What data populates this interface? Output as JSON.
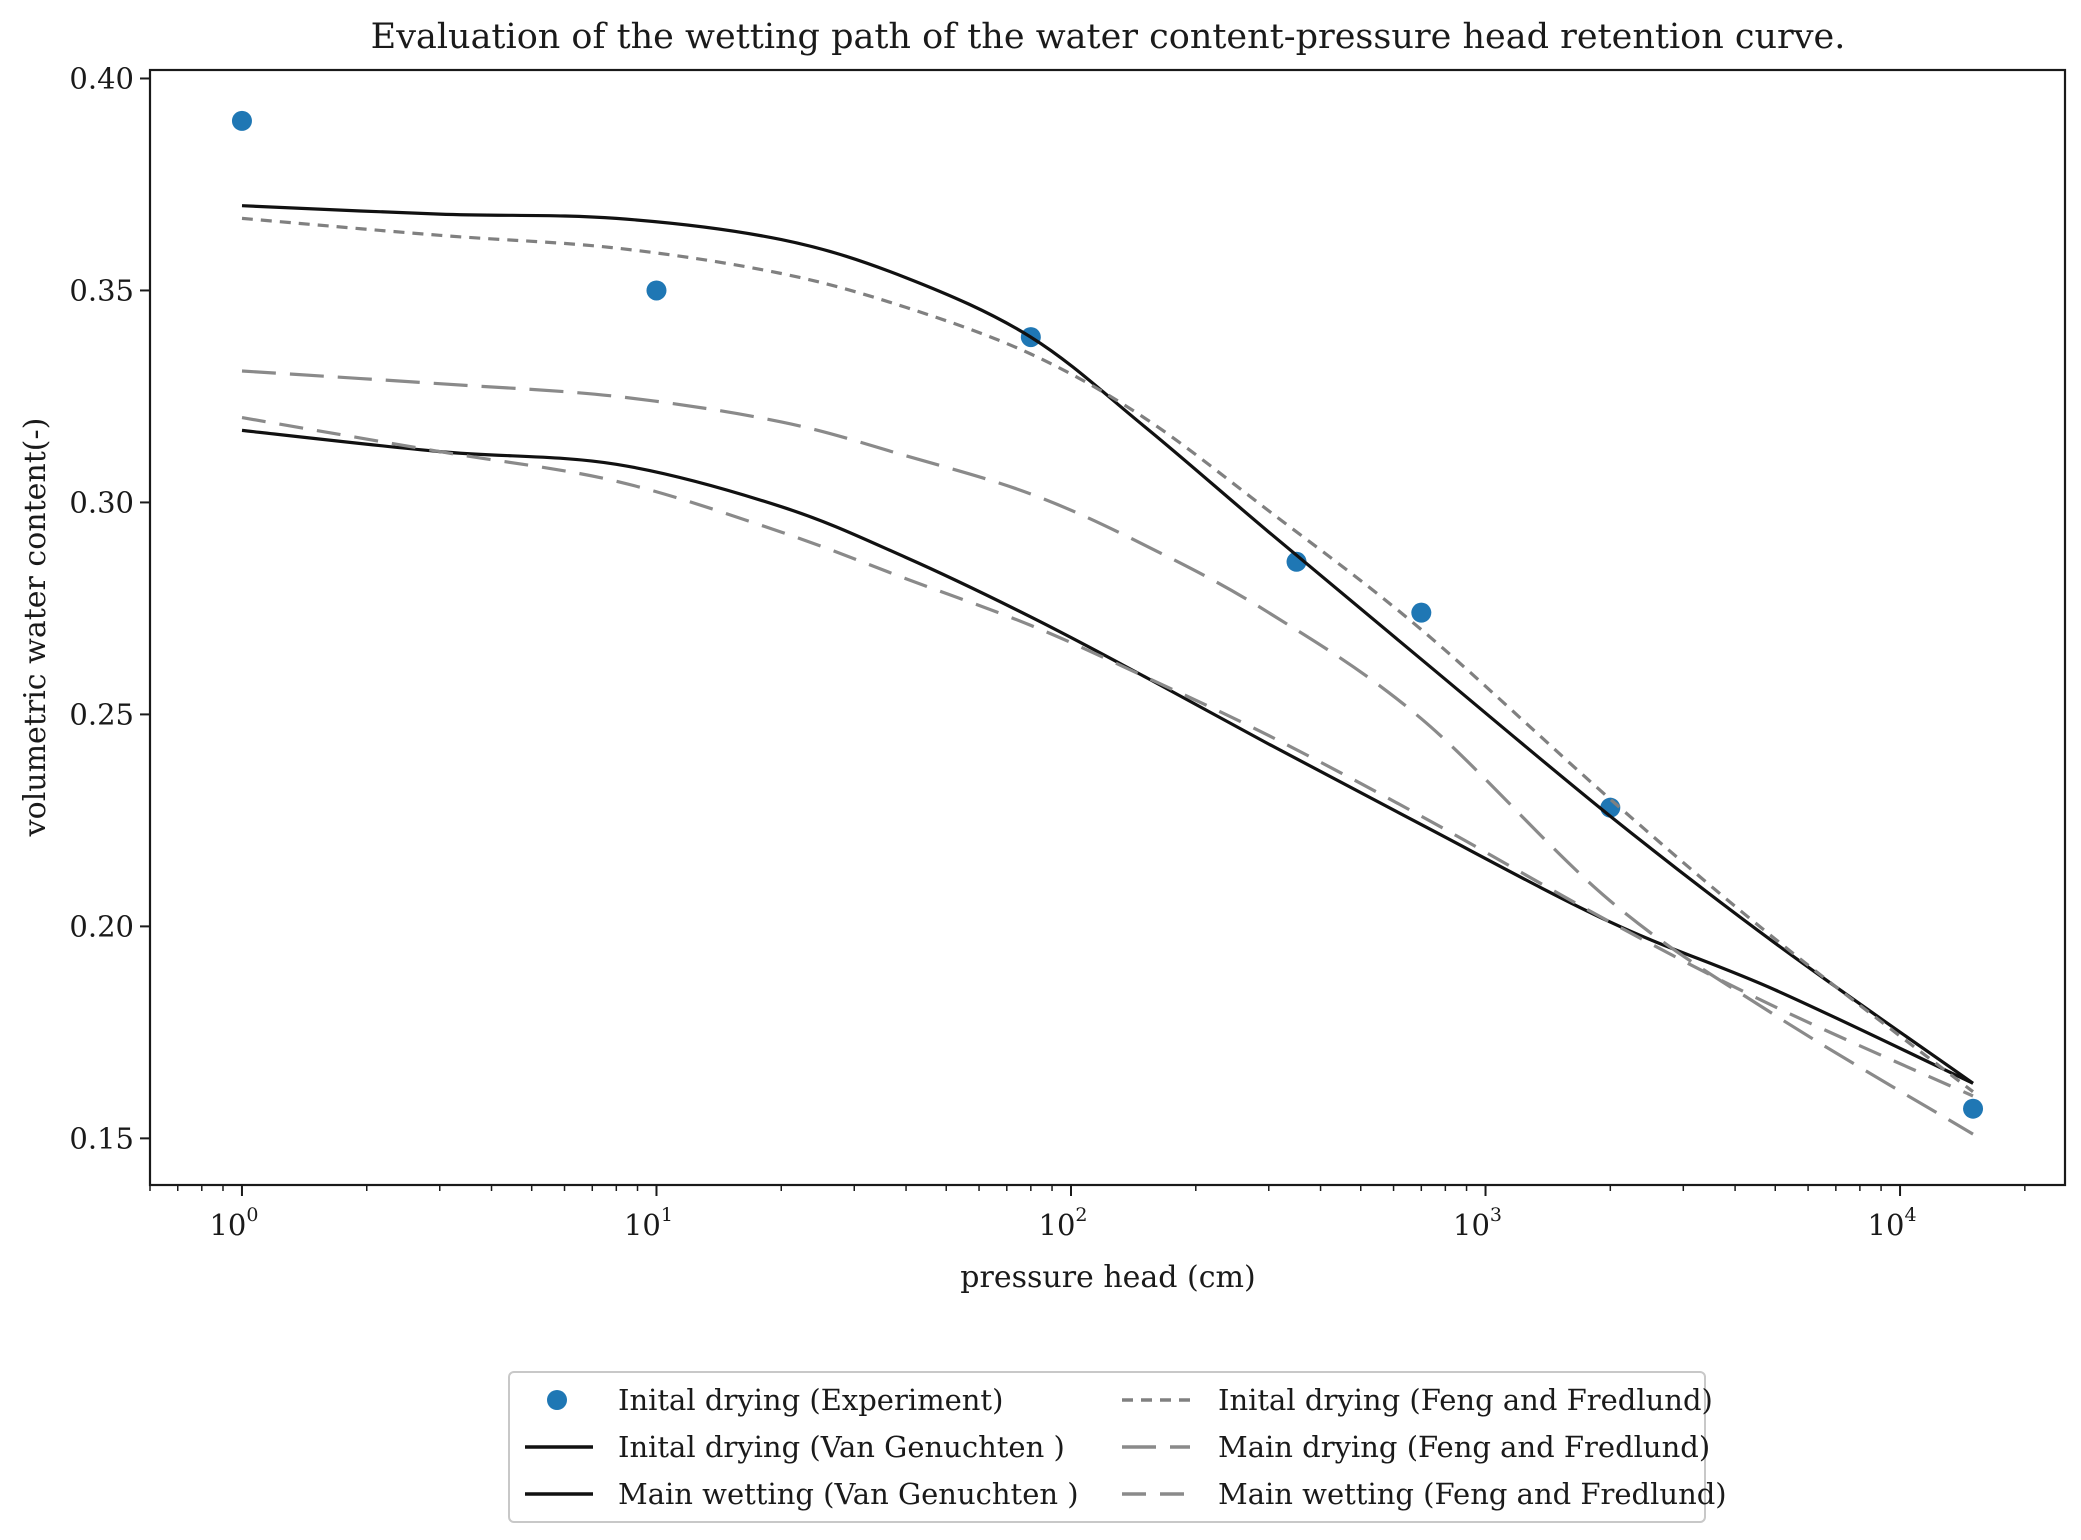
{
  "chart_data": {
    "type": "line",
    "title": "Evaluation of the wetting path of the water content-pressure head retention curve.",
    "xlabel": "pressure head (cm)",
    "ylabel": "volumetric water content(-)",
    "xscale": "log",
    "xlim": [
      0.6,
      25000
    ],
    "ylim": [
      0.139,
      0.402
    ],
    "grid": false,
    "x_ticks": [
      {
        "value": 1,
        "base": "10",
        "exp": "0"
      },
      {
        "value": 10,
        "base": "10",
        "exp": "1"
      },
      {
        "value": 100,
        "base": "10",
        "exp": "2"
      },
      {
        "value": 1000,
        "base": "10",
        "exp": "3"
      },
      {
        "value": 10000,
        "base": "10",
        "exp": "4"
      }
    ],
    "y_ticks": [
      {
        "value": 0.15,
        "label": "0.15"
      },
      {
        "value": 0.2,
        "label": "0.20"
      },
      {
        "value": 0.25,
        "label": "0.25"
      },
      {
        "value": 0.3,
        "label": "0.30"
      },
      {
        "value": 0.35,
        "label": "0.35"
      },
      {
        "value": 0.4,
        "label": "0.40"
      }
    ],
    "legend_position": "bottom-center (below plot)",
    "series": [
      {
        "name": "Inital drying (Experiment)",
        "style": "marker",
        "color": "#1f77b4",
        "x": [
          1,
          10,
          80,
          350,
          700,
          2000,
          15000
        ],
        "y": [
          0.39,
          0.35,
          0.339,
          0.286,
          0.274,
          0.228,
          0.157
        ]
      },
      {
        "name": "Inital drying (Van Genuchten )",
        "style": "solid",
        "color": "#111111",
        "x": [
          1,
          3,
          8,
          20,
          40,
          80,
          150,
          300,
          700,
          2000,
          5000,
          15000
        ],
        "y": [
          0.37,
          0.368,
          0.367,
          0.362,
          0.353,
          0.339,
          0.318,
          0.293,
          0.263,
          0.226,
          0.196,
          0.163
        ]
      },
      {
        "name": "Main wetting (Van Genuchten )",
        "style": "solid",
        "color": "#111111",
        "x": [
          1,
          3,
          8,
          20,
          40,
          80,
          150,
          300,
          700,
          2000,
          5000,
          15000
        ],
        "y": [
          0.317,
          0.312,
          0.309,
          0.299,
          0.287,
          0.273,
          0.259,
          0.243,
          0.224,
          0.201,
          0.185,
          0.163
        ]
      },
      {
        "name": "Inital drying (Feng and Fredlund)",
        "style": "short-dash",
        "color": "#808080",
        "x": [
          1,
          3,
          8,
          20,
          40,
          80,
          150,
          300,
          700,
          2000,
          5000,
          15000
        ],
        "y": [
          0.367,
          0.363,
          0.36,
          0.354,
          0.346,
          0.335,
          0.32,
          0.298,
          0.27,
          0.23,
          0.197,
          0.161
        ]
      },
      {
        "name": "Main drying (Feng and Fredlund)",
        "style": "long-dash",
        "color": "#808080",
        "x": [
          1,
          3,
          8,
          20,
          40,
          80,
          150,
          300,
          700,
          2000,
          5000,
          15000
        ],
        "y": [
          0.331,
          0.328,
          0.325,
          0.319,
          0.311,
          0.302,
          0.29,
          0.274,
          0.249,
          0.206,
          0.179,
          0.151
        ]
      },
      {
        "name": "Main wetting (Feng and Fredlund)",
        "style": "mid-dash",
        "color": "#808080",
        "x": [
          1,
          3,
          8,
          20,
          40,
          80,
          150,
          300,
          700,
          2000,
          5000,
          15000
        ],
        "y": [
          0.32,
          0.312,
          0.305,
          0.293,
          0.282,
          0.271,
          0.259,
          0.245,
          0.226,
          0.201,
          0.181,
          0.16
        ]
      }
    ]
  }
}
